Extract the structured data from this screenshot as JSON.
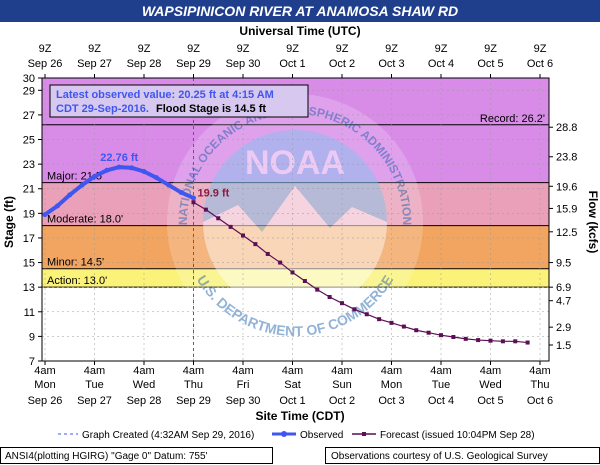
{
  "title": "WAPSIPINICON RIVER AT ANAMOSA SHAW RD",
  "colors": {
    "title_bg": "#1f3f8c",
    "plot_bg": "#ffffff",
    "record_zone": "#d98be8",
    "major_zone": "#e9a0b8",
    "moderate_zone": "#f2a560",
    "minor_zone": "#f8d88a",
    "action_zone": "#fbf27a",
    "observed": "#3f56f0",
    "forecast": "#5b0f55",
    "noaa_watermark": "#6fb0e8",
    "peak_label": "#3f56f0",
    "latest_label": "#8b1a3c",
    "info_box_border": "#000000",
    "info_box_text": "#3f56f0"
  },
  "chart_data": {
    "type": "line",
    "title": "WAPSIPINICON RIVER AT ANAMOSA SHAW RD",
    "top_axis_title": "Universal Time (UTC)",
    "bottom_axis_title": "Site Time (CDT)",
    "ylabel": "Stage (ft)",
    "y2label": "Flow (kcfs)",
    "ylim": [
      7,
      30
    ],
    "xlim_days": [
      0,
      10.5
    ],
    "y_ticks": [
      7,
      9,
      11,
      13,
      15,
      17,
      19,
      21,
      23,
      25,
      27,
      29,
      30
    ],
    "y2_ticks": [
      {
        "stage": 8.3,
        "label": "1.5"
      },
      {
        "stage": 9.75,
        "label": "2.9"
      },
      {
        "stage": 11.9,
        "label": "4.7"
      },
      {
        "stage": 13.0,
        "label": "6.9"
      },
      {
        "stage": 15.0,
        "label": "9.5"
      },
      {
        "stage": 17.5,
        "label": "12.5"
      },
      {
        "stage": 19.4,
        "label": "15.9"
      },
      {
        "stage": 21.2,
        "label": "19.6"
      },
      {
        "stage": 23.6,
        "label": "23.8"
      },
      {
        "stage": 26.0,
        "label": "28.8"
      }
    ],
    "top_ticks": [
      {
        "day": 0,
        "hour": "9Z",
        "date": "Sep 26"
      },
      {
        "day": 1,
        "hour": "9Z",
        "date": "Sep 27"
      },
      {
        "day": 2,
        "hour": "9Z",
        "date": "Sep 28"
      },
      {
        "day": 3,
        "hour": "9Z",
        "date": "Sep 29"
      },
      {
        "day": 4,
        "hour": "9Z",
        "date": "Sep 30"
      },
      {
        "day": 5,
        "hour": "9Z",
        "date": "Oct 1"
      },
      {
        "day": 6,
        "hour": "9Z",
        "date": "Oct 2"
      },
      {
        "day": 7,
        "hour": "9Z",
        "date": "Oct 3"
      },
      {
        "day": 8,
        "hour": "9Z",
        "date": "Oct 4"
      },
      {
        "day": 9,
        "hour": "9Z",
        "date": "Oct 5"
      },
      {
        "day": 10,
        "hour": "9Z",
        "date": "Oct 6"
      }
    ],
    "bottom_ticks": [
      {
        "day": 0,
        "hour": "4am",
        "weekday": "Mon",
        "date": "Sep 26"
      },
      {
        "day": 1,
        "hour": "4am",
        "weekday": "Tue",
        "date": "Sep 27"
      },
      {
        "day": 2,
        "hour": "4am",
        "weekday": "Wed",
        "date": "Sep 28"
      },
      {
        "day": 3,
        "hour": "4am",
        "weekday": "Thu",
        "date": "Sep 29"
      },
      {
        "day": 4,
        "hour": "4am",
        "weekday": "Fri",
        "date": "Sep 30"
      },
      {
        "day": 5,
        "hour": "4am",
        "weekday": "Sat",
        "date": "Oct 1"
      },
      {
        "day": 6,
        "hour": "4am",
        "weekday": "Sun",
        "date": "Oct 2"
      },
      {
        "day": 7,
        "hour": "4am",
        "weekday": "Mon",
        "date": "Oct 3"
      },
      {
        "day": 8,
        "hour": "4am",
        "weekday": "Tue",
        "date": "Oct 4"
      },
      {
        "day": 9,
        "hour": "4am",
        "weekday": "Wed",
        "date": "Oct 5"
      },
      {
        "day": 10,
        "hour": "4am",
        "weekday": "Thu",
        "date": "Oct 6"
      }
    ],
    "flood_categories": [
      {
        "name": "Record",
        "stage": 26.2,
        "label": "Record: 26.2'"
      },
      {
        "name": "Major",
        "stage": 21.5,
        "label": "Major: 21.5'"
      },
      {
        "name": "Moderate",
        "stage": 18.0,
        "label": "Moderate: 18.0'"
      },
      {
        "name": "Minor",
        "stage": 14.5,
        "label": "Minor: 14.5'"
      },
      {
        "name": "Action",
        "stage": 13.0,
        "label": "Action: 13.0'"
      }
    ],
    "observed": {
      "name": "Observed",
      "x": [
        0.0,
        0.25,
        0.5,
        0.75,
        1.0,
        1.25,
        1.5,
        1.75,
        2.0,
        2.25,
        2.5,
        2.75,
        3.0
      ],
      "y": [
        18.9,
        19.6,
        20.5,
        21.3,
        22.0,
        22.5,
        22.76,
        22.7,
        22.4,
        21.9,
        21.3,
        20.7,
        20.25
      ]
    },
    "forecast": {
      "name": "Forecast (issued 10:04PM Sep 28)",
      "x": [
        3.0,
        3.25,
        3.5,
        3.75,
        4.0,
        4.25,
        4.5,
        4.75,
        5.0,
        5.25,
        5.5,
        5.75,
        6.0,
        6.25,
        6.5,
        6.75,
        7.0,
        7.25,
        7.5,
        7.75,
        8.0,
        8.25,
        8.5,
        8.75,
        9.0,
        9.25,
        9.5,
        9.75
      ],
      "y": [
        19.9,
        19.3,
        18.6,
        17.9,
        17.2,
        16.5,
        15.7,
        15.0,
        14.2,
        13.5,
        12.8,
        12.2,
        11.7,
        11.2,
        10.8,
        10.4,
        10.1,
        9.8,
        9.5,
        9.3,
        9.1,
        8.95,
        8.8,
        8.7,
        8.65,
        8.6,
        8.6,
        8.5
      ]
    },
    "peak_annotation": {
      "x": 1.5,
      "y": 22.76,
      "label": "22.76 ft"
    },
    "latest_annotation": {
      "x": 3.0,
      "y": 19.9,
      "label": "19.9 ft"
    },
    "graph_created_day": 3.0
  },
  "info_box": {
    "line1": "Latest observed value: 20.25 ft at 4:15 AM",
    "line2_date": "CDT 29-Sep-2016.",
    "line2_flood": "Flood Stage is 14.5 ft"
  },
  "legend": {
    "graph_created": "Graph Created (4:32AM Sep 29, 2016)",
    "observed": "Observed",
    "forecast": "Forecast (issued 10:04PM Sep 28)"
  },
  "footer": {
    "left": "ANSI4(plotting HGIRG) \"Gage 0\" Datum: 755'",
    "right": "Observations courtesy of U.S. Geological Survey"
  },
  "watermark": {
    "top_arc": "NATIONAL OCEANIC AND ATMOSPHERIC ADMINISTRATION",
    "bottom_arc": "U.S. DEPARTMENT OF COMMERCE",
    "center": "NOAA"
  }
}
